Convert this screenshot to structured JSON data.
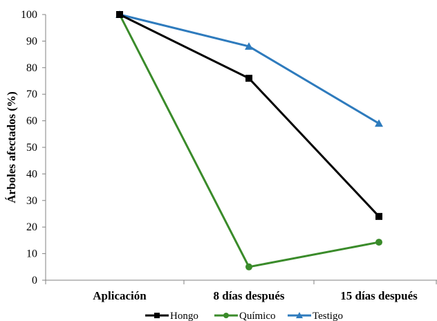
{
  "chart_data": {
    "type": "line",
    "categories": [
      "Aplicación",
      "8 días después",
      "15 días después"
    ],
    "series": [
      {
        "name": "Hongo",
        "values": [
          100,
          76,
          24
        ],
        "color": "#000000",
        "marker": "square"
      },
      {
        "name": "Químico",
        "values": [
          100,
          5,
          14.3
        ],
        "color": "#3a8b2a",
        "marker": "circle"
      },
      {
        "name": "Testigo",
        "values": [
          100,
          88,
          59
        ],
        "color": "#2e7bbd",
        "marker": "triangle"
      }
    ],
    "title": "",
    "xlabel": "",
    "ylabel": "Árboles afectados (%)",
    "ylim": [
      0,
      100
    ],
    "yticks": [
      0,
      10,
      20,
      30,
      40,
      50,
      60,
      70,
      80,
      90,
      100
    ],
    "grid": false,
    "legend_position": "bottom"
  }
}
